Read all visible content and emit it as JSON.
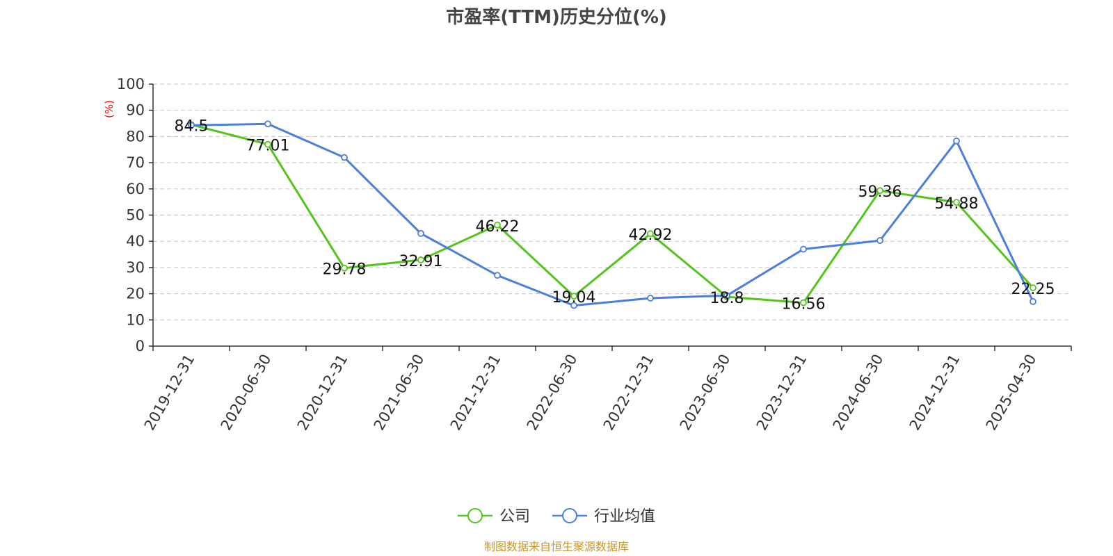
{
  "chart_data": {
    "type": "line",
    "title": "市盈率(TTM)历史分位(%)",
    "ylabel": "(%)",
    "ylim": [
      0,
      100
    ],
    "yticks": [
      0,
      10,
      20,
      30,
      40,
      50,
      60,
      70,
      80,
      90,
      100
    ],
    "grid": true,
    "legend_position": "bottom-center",
    "categories": [
      "2019-12-31",
      "2020-06-30",
      "2020-12-31",
      "2021-06-30",
      "2021-12-31",
      "2022-06-30",
      "2022-12-31",
      "2023-06-30",
      "2023-12-31",
      "2024-06-30",
      "2024-12-31",
      "2025-04-30"
    ],
    "series": [
      {
        "name": "公司",
        "color": "#52c41a",
        "values": [
          84.5,
          77.01,
          29.78,
          32.91,
          46.22,
          19.04,
          42.92,
          18.8,
          16.56,
          59.36,
          54.88,
          22.25
        ],
        "labels": [
          "84.5",
          "77.01",
          "29.78",
          "32.91",
          "46.22",
          "19.04",
          "42.92",
          "18.8",
          "16.56",
          "59.36",
          "54.88",
          "22.25"
        ]
      },
      {
        "name": "行业均值",
        "color": "#4a7fdc",
        "values": [
          84.3,
          84.8,
          72.0,
          43.0,
          27.0,
          15.5,
          18.3,
          19.3,
          37.0,
          40.3,
          78.3,
          17.0
        ]
      }
    ],
    "source": "制图数据来自恒生聚源数据库",
    "colors": {
      "title": "#444444",
      "ylabel": "#ff0000",
      "source": "#c8962a",
      "grid": "#cccccc",
      "axis": "#333333"
    }
  }
}
